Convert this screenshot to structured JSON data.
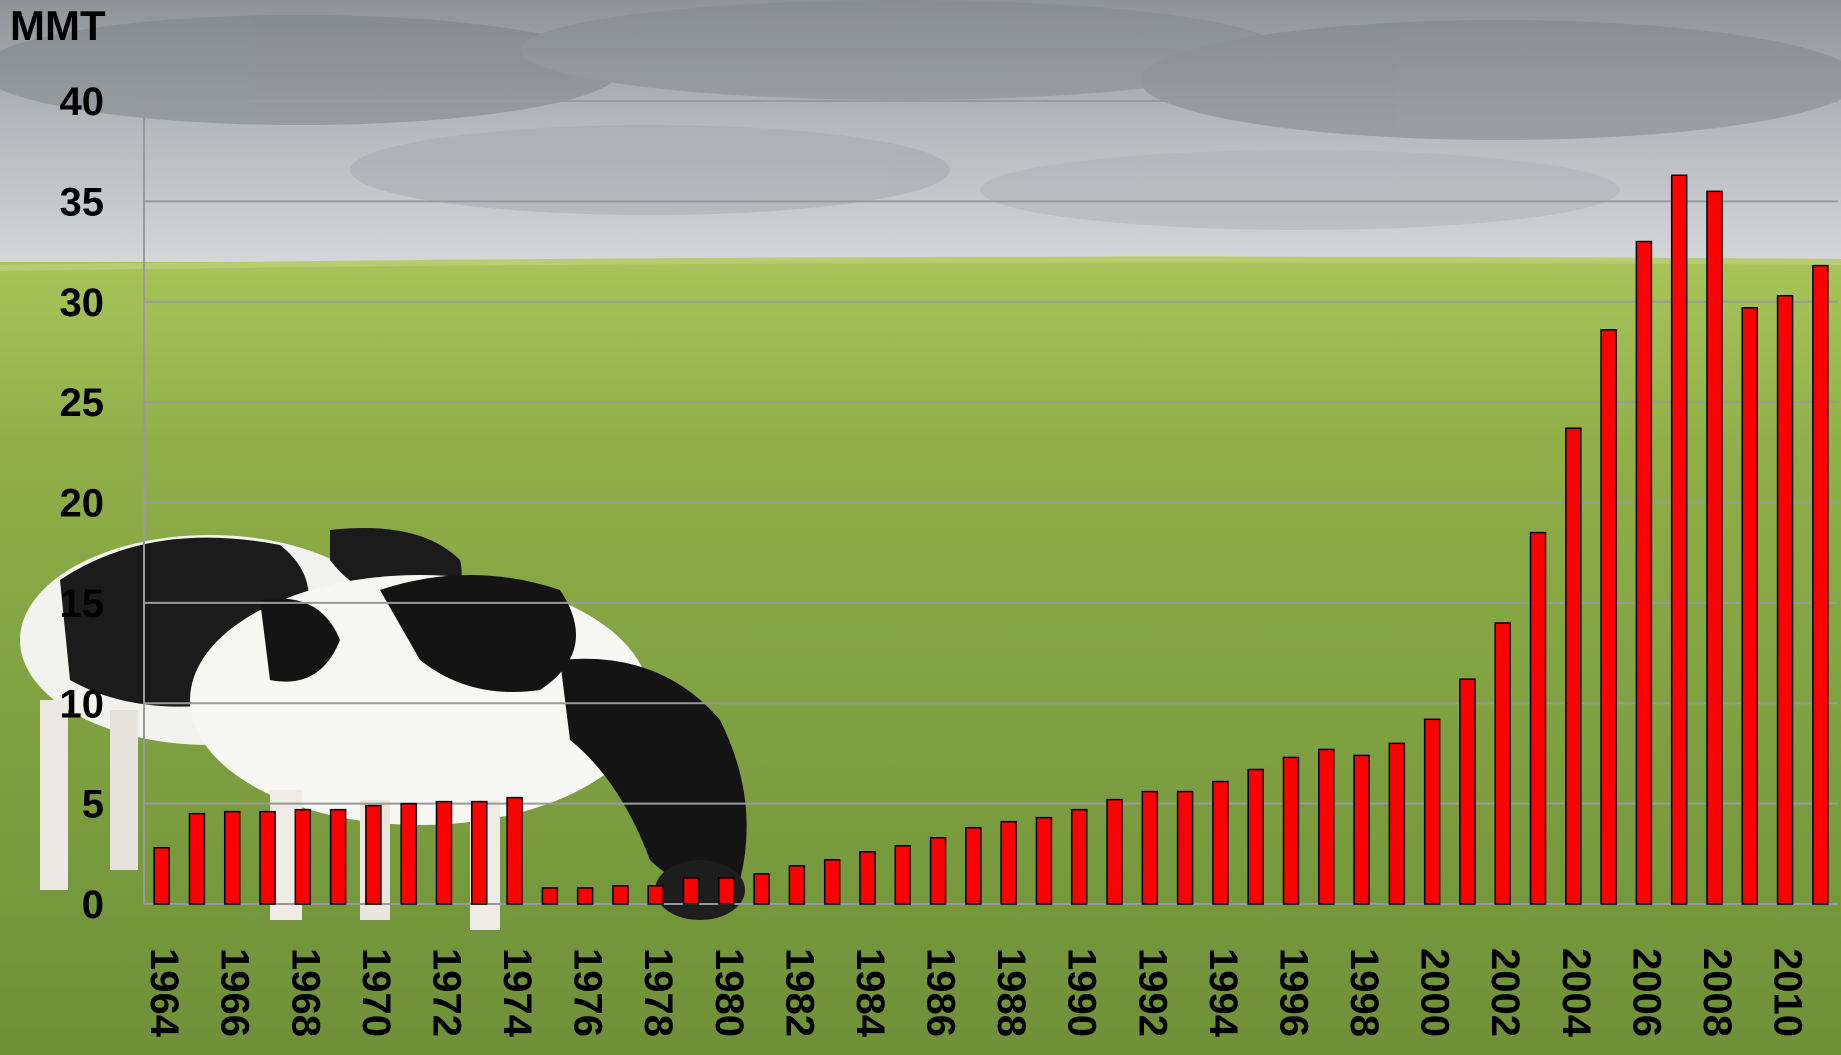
{
  "chart_data": {
    "type": "bar",
    "title": "",
    "xlabel": "",
    "ylabel": "MMT",
    "ylim": [
      0,
      40
    ],
    "yticks": [
      "0",
      "5",
      "10",
      "15",
      "20",
      "25",
      "30",
      "35",
      "40"
    ],
    "grid": true,
    "legend": "none",
    "bar_color": "#ff0000",
    "bar_edge_color": "#000000",
    "gridline_color": "#9a9a9a",
    "categories": [
      "1964",
      "1965",
      "1966",
      "1967",
      "1968",
      "1969",
      "1970",
      "1971",
      "1972",
      "1973",
      "1974",
      "1975",
      "1976",
      "1977",
      "1978",
      "1979",
      "1980",
      "1981",
      "1982",
      "1983",
      "1984",
      "1985",
      "1986",
      "1987",
      "1988",
      "1989",
      "1990",
      "1991",
      "1992",
      "1993",
      "1994",
      "1995",
      "1996",
      "1997",
      "1998",
      "1999",
      "2000",
      "2001",
      "2002",
      "2003",
      "2004",
      "2005",
      "2006",
      "2007",
      "2008",
      "2009",
      "2010",
      "2011"
    ],
    "xtick_labels": [
      "1964",
      "1966",
      "1968",
      "1970",
      "1972",
      "1974",
      "1976",
      "1978",
      "1980",
      "1982",
      "1984",
      "1986",
      "1988",
      "1990",
      "1992",
      "1994",
      "1996",
      "1998",
      "2000",
      "2002",
      "2004",
      "2006",
      "2008",
      "2010"
    ],
    "values": [
      2.8,
      4.5,
      4.6,
      4.6,
      4.7,
      4.7,
      4.9,
      5.0,
      5.1,
      5.1,
      5.3,
      0.8,
      0.8,
      0.9,
      0.9,
      1.3,
      1.3,
      1.5,
      1.9,
      2.2,
      2.6,
      2.9,
      3.3,
      3.8,
      4.1,
      4.3,
      4.7,
      5.2,
      5.6,
      5.6,
      6.1,
      6.7,
      7.3,
      7.7,
      7.4,
      8.0,
      9.2,
      11.2,
      14.0,
      18.5,
      23.7,
      28.6,
      33.0,
      36.3,
      35.5,
      29.7,
      30.3,
      31.8
    ]
  },
  "background": {
    "scene": "cows-grazing-pasture",
    "sky_color": "#b9bcc0",
    "grass_color": "#7ea33e"
  }
}
